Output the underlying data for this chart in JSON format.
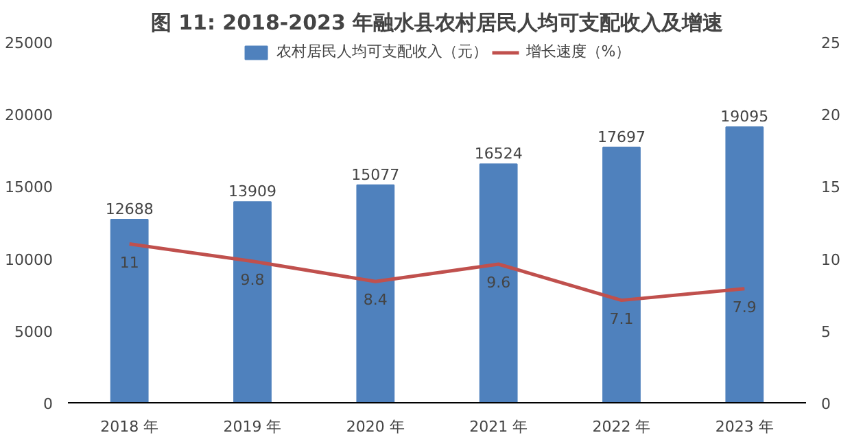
{
  "chart_data": {
    "type": "bar",
    "title": "图 11: 2018-2023 年融水县农村居民人均可支配收入及增速",
    "categories": [
      "2018 年",
      "2019 年",
      "2020 年",
      "2021 年",
      "2022 年",
      "2023 年"
    ],
    "series": [
      {
        "name": "农村居民人均可支配收入（元）",
        "color": "#4f81bd",
        "values": [
          12688,
          13909,
          15077,
          16524,
          17697,
          19095
        ]
      },
      {
        "name": "增长速度（%）",
        "type": "line",
        "axis": "y2",
        "color": "#c0504d",
        "values": [
          11,
          9.8,
          8.4,
          9.6,
          7.1,
          7.9
        ]
      }
    ],
    "ylim": [
      0,
      25000
    ],
    "yticks": [
      0,
      5000,
      10000,
      15000,
      20000,
      25000
    ],
    "y2lim": [
      0,
      25
    ],
    "y2ticks": [
      0,
      5,
      10,
      15,
      20,
      25
    ],
    "data_labels": true,
    "legend": "top",
    "grid": false
  }
}
